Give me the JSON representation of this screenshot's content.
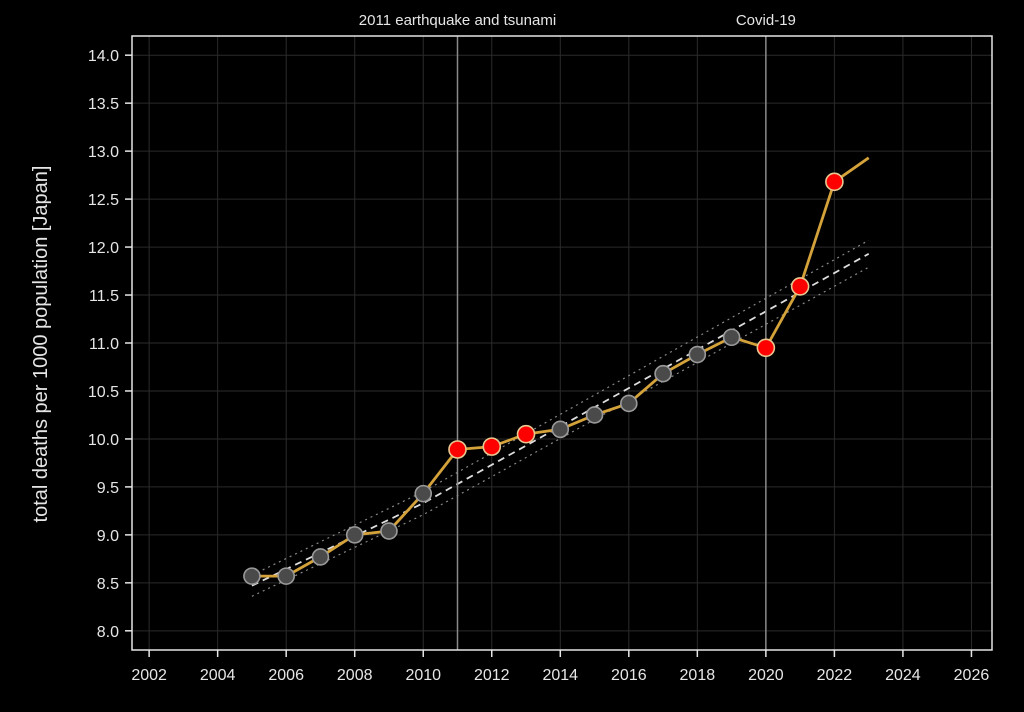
{
  "chart_data": {
    "type": "line",
    "ylabel": "total deaths per 1000 population [Japan]",
    "xlabel": "",
    "xlim": [
      2001.5,
      2026.6
    ],
    "ylim": [
      7.8,
      14.2
    ],
    "xticks": [
      2002,
      2004,
      2006,
      2008,
      2010,
      2012,
      2014,
      2016,
      2018,
      2020,
      2022,
      2024,
      2026
    ],
    "yticks": [
      8.0,
      8.5,
      9.0,
      9.5,
      10.0,
      10.5,
      11.0,
      11.5,
      12.0,
      12.5,
      13.0,
      13.5,
      14.0
    ],
    "grid": true,
    "background": "#000000",
    "colors": {
      "line": "#d4a23a",
      "point": "#4a4a4a",
      "point_excess": "#ff0000",
      "trend": "#dddddd",
      "annotation_line": "#8a8a8a"
    },
    "series": [
      {
        "points": [
          {
            "x": 2005,
            "y": 8.57,
            "excess": false
          },
          {
            "x": 2006,
            "y": 8.57,
            "excess": false
          },
          {
            "x": 2007,
            "y": 8.77,
            "excess": false
          },
          {
            "x": 2008,
            "y": 9.0,
            "excess": false
          },
          {
            "x": 2009,
            "y": 9.04,
            "excess": false
          },
          {
            "x": 2010,
            "y": 9.43,
            "excess": false
          },
          {
            "x": 2011,
            "y": 9.89,
            "excess": true
          },
          {
            "x": 2012,
            "y": 9.92,
            "excess": true
          },
          {
            "x": 2013,
            "y": 10.05,
            "excess": true
          },
          {
            "x": 2014,
            "y": 10.1,
            "excess": false
          },
          {
            "x": 2015,
            "y": 10.25,
            "excess": false
          },
          {
            "x": 2016,
            "y": 10.37,
            "excess": false
          },
          {
            "x": 2017,
            "y": 10.68,
            "excess": false
          },
          {
            "x": 2018,
            "y": 10.88,
            "excess": false
          },
          {
            "x": 2019,
            "y": 11.06,
            "excess": false
          },
          {
            "x": 2020,
            "y": 10.95,
            "excess": true
          },
          {
            "x": 2021,
            "y": 11.59,
            "excess": true
          },
          {
            "x": 2022,
            "y": 12.68,
            "excess": true
          }
        ],
        "extension": {
          "x": 2023,
          "y": 12.93
        }
      }
    ],
    "trend": {
      "fit_line": [
        {
          "x": 2005,
          "y": 8.47
        },
        {
          "x": 2010,
          "y": 9.33
        },
        {
          "x": 2023,
          "y": 11.93
        }
      ],
      "upper_bound": [
        {
          "x": 2005,
          "y": 8.58
        },
        {
          "x": 2010,
          "y": 9.45
        },
        {
          "x": 2023,
          "y": 12.07
        }
      ],
      "lower_bound": [
        {
          "x": 2005,
          "y": 8.36
        },
        {
          "x": 2010,
          "y": 9.21
        },
        {
          "x": 2023,
          "y": 11.79
        }
      ]
    },
    "annotations": [
      {
        "x": 2011,
        "label": "2011 earthquake and tsunami"
      },
      {
        "x": 2020,
        "label": "Covid-19"
      }
    ]
  }
}
